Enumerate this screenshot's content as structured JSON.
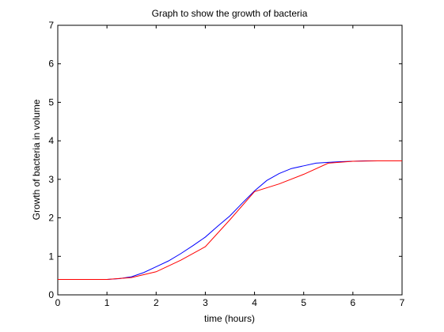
{
  "chart_data": {
    "type": "line",
    "title": "Graph to show the growth of bacteria",
    "xlabel": "time (hours)",
    "ylabel": "Growth of bacteria in volume",
    "xlim": [
      0,
      7
    ],
    "ylim": [
      0,
      7
    ],
    "xticks": [
      "0",
      "1",
      "2",
      "3",
      "4",
      "5",
      "6",
      "7"
    ],
    "yticks": [
      "0",
      "1",
      "2",
      "3",
      "4",
      "5",
      "6",
      "7"
    ],
    "grid": false,
    "legend": "none",
    "series": [
      {
        "color": "#0000ff",
        "x": [
          0,
          0.5,
          1,
          1.25,
          1.5,
          1.75,
          2,
          2.25,
          2.5,
          2.75,
          3,
          3.25,
          3.5,
          3.75,
          4,
          4.25,
          4.5,
          4.75,
          5,
          5.25,
          5.5,
          5.75,
          6,
          6.25,
          6.5,
          6.75,
          7
        ],
        "y": [
          0.4,
          0.4,
          0.4,
          0.42,
          0.47,
          0.58,
          0.73,
          0.88,
          1.07,
          1.28,
          1.5,
          1.78,
          2.05,
          2.38,
          2.7,
          2.97,
          3.15,
          3.28,
          3.35,
          3.42,
          3.44,
          3.46,
          3.47,
          3.48,
          3.48,
          3.48,
          3.48
        ]
      },
      {
        "color": "#ff0000",
        "x": [
          0,
          1,
          1.5,
          2,
          2.5,
          3,
          3.5,
          4,
          4.5,
          5,
          5.5,
          6,
          6.5,
          7
        ],
        "y": [
          0.4,
          0.4,
          0.45,
          0.6,
          0.9,
          1.25,
          1.95,
          2.68,
          2.88,
          3.13,
          3.42,
          3.47,
          3.48,
          3.48
        ]
      }
    ]
  }
}
